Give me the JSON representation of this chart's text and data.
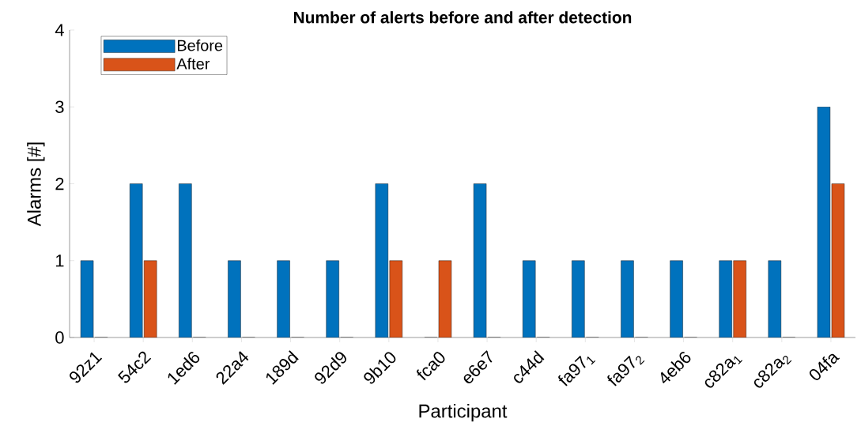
{
  "chart_data": {
    "type": "bar",
    "title": "Number of alerts before and after detection",
    "xlabel": "Participant",
    "ylabel": "Alarms [#]",
    "categories": [
      "92z1",
      "54c2",
      "1ed6",
      "22a4",
      "189d",
      "92d9",
      "9b10",
      "fca0",
      "e6e7",
      "c44d",
      "fa97$_{1}$",
      "fa97$_{2}$",
      "4eb6",
      "c82a$_{1}$",
      "c82a$_{2}$",
      "04fa"
    ],
    "series": [
      {
        "name": "Before",
        "color": "#0072bd",
        "values": [
          1,
          2,
          2,
          1,
          1,
          1,
          2,
          0,
          2,
          1,
          1,
          1,
          1,
          1,
          1,
          3
        ]
      },
      {
        "name": "After",
        "color": "#d95319",
        "values": [
          0,
          1,
          0,
          0,
          0,
          0,
          1,
          1,
          0,
          0,
          0,
          0,
          0,
          1,
          0,
          2
        ]
      }
    ],
    "ylim": [
      0,
      4
    ],
    "yticks": [
      0,
      1,
      2,
      3,
      4
    ],
    "legend": "top left"
  }
}
